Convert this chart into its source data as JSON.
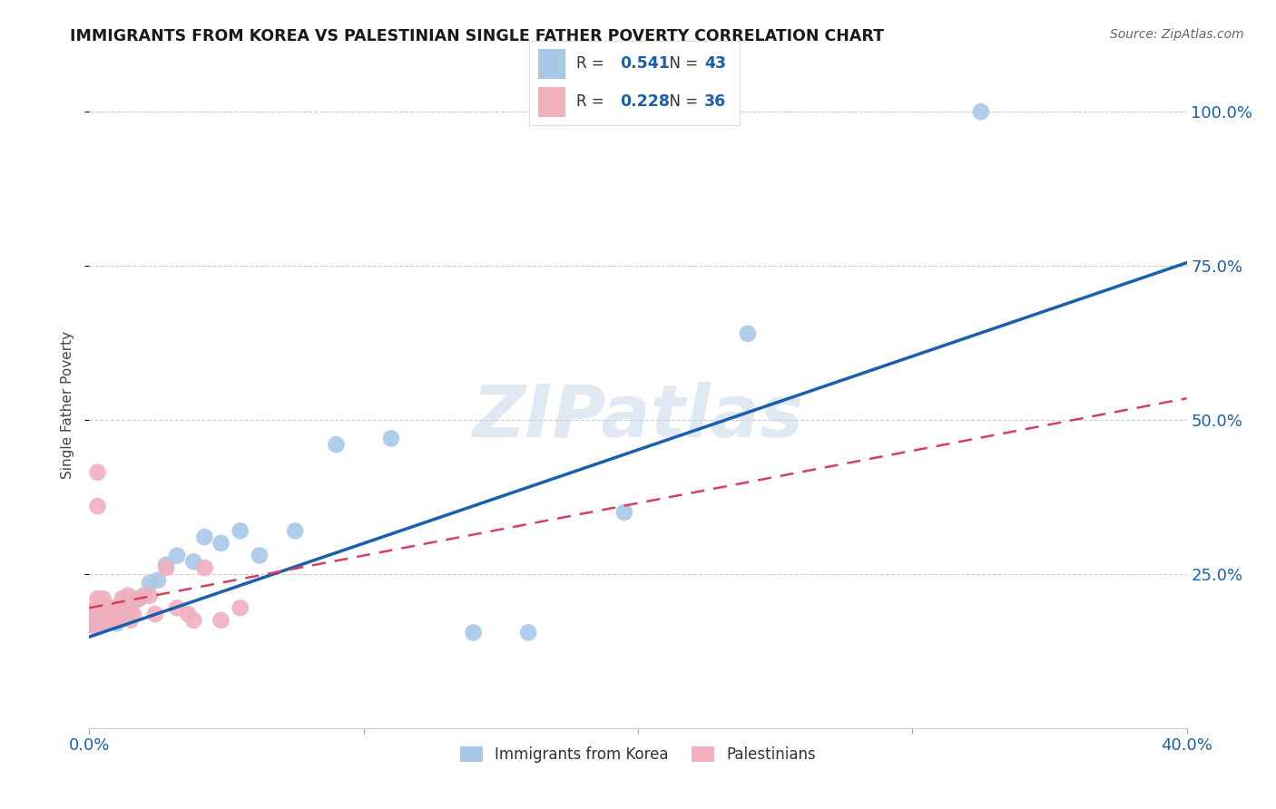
{
  "title": "IMMIGRANTS FROM KOREA VS PALESTINIAN SINGLE FATHER POVERTY CORRELATION CHART",
  "source": "Source: ZipAtlas.com",
  "ylabel": "Single Father Poverty",
  "xlim": [
    0.0,
    0.4
  ],
  "ylim": [
    0.0,
    1.05
  ],
  "ytick_labels_right": [
    "100.0%",
    "75.0%",
    "50.0%",
    "25.0%"
  ],
  "ytick_positions_right": [
    1.0,
    0.75,
    0.5,
    0.25
  ],
  "korea_color": "#a8c8e8",
  "korea_line_color": "#1a5fad",
  "palestine_color": "#f0b0be",
  "palestine_line_color": "#d44060",
  "background_color": "#ffffff",
  "watermark": "ZIPatlas",
  "korea_x": [
    0.001,
    0.002,
    0.002,
    0.003,
    0.003,
    0.004,
    0.004,
    0.005,
    0.005,
    0.006,
    0.006,
    0.007,
    0.007,
    0.008,
    0.008,
    0.009,
    0.01,
    0.01,
    0.011,
    0.012,
    0.013,
    0.014,
    0.015,
    0.016,
    0.018,
    0.02,
    0.022,
    0.025,
    0.028,
    0.032,
    0.038,
    0.042,
    0.048,
    0.055,
    0.062,
    0.075,
    0.09,
    0.11,
    0.14,
    0.16,
    0.195,
    0.24,
    0.325
  ],
  "korea_y": [
    0.18,
    0.19,
    0.165,
    0.175,
    0.185,
    0.17,
    0.19,
    0.175,
    0.185,
    0.17,
    0.185,
    0.175,
    0.19,
    0.18,
    0.175,
    0.195,
    0.185,
    0.17,
    0.19,
    0.195,
    0.21,
    0.185,
    0.195,
    0.21,
    0.21,
    0.215,
    0.235,
    0.24,
    0.265,
    0.28,
    0.27,
    0.31,
    0.3,
    0.32,
    0.28,
    0.32,
    0.46,
    0.47,
    0.155,
    0.155,
    0.35,
    0.64,
    1.0
  ],
  "palestine_x": [
    0.001,
    0.001,
    0.002,
    0.002,
    0.003,
    0.003,
    0.003,
    0.004,
    0.004,
    0.005,
    0.005,
    0.005,
    0.006,
    0.006,
    0.007,
    0.008,
    0.009,
    0.01,
    0.01,
    0.011,
    0.012,
    0.013,
    0.014,
    0.015,
    0.016,
    0.018,
    0.02,
    0.022,
    0.024,
    0.028,
    0.032,
    0.036,
    0.038,
    0.042,
    0.048,
    0.055
  ],
  "palestine_y": [
    0.19,
    0.175,
    0.185,
    0.165,
    0.415,
    0.36,
    0.21,
    0.195,
    0.175,
    0.21,
    0.195,
    0.185,
    0.175,
    0.175,
    0.18,
    0.195,
    0.185,
    0.175,
    0.175,
    0.185,
    0.21,
    0.195,
    0.215,
    0.175,
    0.185,
    0.21,
    0.215,
    0.215,
    0.185,
    0.26,
    0.195,
    0.185,
    0.175,
    0.26,
    0.175,
    0.195
  ],
  "korea_line_x0": 0.0,
  "korea_line_x1": 0.4,
  "korea_line_y0": 0.148,
  "korea_line_y1": 0.755,
  "pal_line_x0": 0.0,
  "pal_line_x1": 0.4,
  "pal_line_y0": 0.195,
  "pal_line_y1": 0.535
}
